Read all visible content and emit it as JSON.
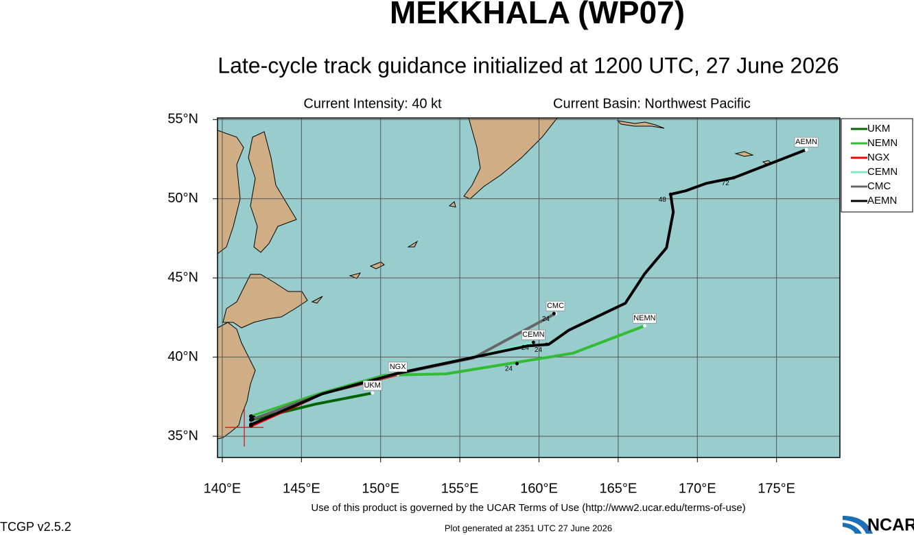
{
  "chart_data": {
    "type": "track-map",
    "title": "MEKKHALA (WP07)",
    "subtitle": "Late-cycle track guidance initialized at 1200 UTC, 27 June 2026",
    "annotations": [
      "Current Intensity: 40 kt",
      "Current Basin: Northwest Pacific"
    ],
    "xlim": [
      139.7,
      179
    ],
    "ylim": [
      33.66,
      55.1
    ],
    "xticks": [
      {
        "value": 140,
        "label": "140°E"
      },
      {
        "value": 145,
        "label": "145°E"
      },
      {
        "value": 150,
        "label": "150°E"
      },
      {
        "value": 155,
        "label": "155°E"
      },
      {
        "value": 160,
        "label": "160°E"
      },
      {
        "value": 165,
        "label": "165°E"
      },
      {
        "value": 170,
        "label": "170°E"
      },
      {
        "value": 175,
        "label": "175°E"
      }
    ],
    "yticks": [
      {
        "value": 35,
        "label": "35°N"
      },
      {
        "value": 40,
        "label": "40°N"
      },
      {
        "value": 45,
        "label": "45°N"
      },
      {
        "value": 50,
        "label": "50°N"
      },
      {
        "value": 55,
        "label": "55°N"
      }
    ],
    "grid": true,
    "ocean_color": "#99cccc",
    "current_position": {
      "lon": 141.39,
      "lat": 35.56
    },
    "series": [
      {
        "name": "UKM",
        "color": "#006400",
        "lon": [
          141.82,
          145.89,
          149.48
        ],
        "lat": [
          36.04,
          37.03,
          37.73
        ],
        "markers": []
      },
      {
        "name": "NEMN",
        "color": "#33bb33",
        "lon": [
          141.82,
          146.1,
          150.22,
          154.11,
          162.12,
          166.67
        ],
        "lat": [
          36.26,
          37.68,
          38.85,
          38.94,
          40.24,
          41.97
        ],
        "markers": [
          {
            "hour": 24,
            "lon": 158.61,
            "lat": 39.59
          }
        ]
      },
      {
        "name": "NGX",
        "color": "#ff0000",
        "lon": [
          141.82,
          146.32,
          151.08
        ],
        "lat": [
          35.65,
          37.68,
          38.9
        ],
        "markers": []
      },
      {
        "name": "CEMN",
        "color": "#7fe8c8",
        "lon": [
          141.99,
          147.19,
          150.22,
          155.84,
          159.65
        ],
        "lat": [
          36.17,
          37.9,
          38.77,
          39.98,
          40.93
        ],
        "markers": [
          {
            "hour": 24,
            "lon": 159.65,
            "lat": 40.93
          }
        ]
      },
      {
        "name": "CMC",
        "color": "#666666",
        "lon": [
          141.9,
          146.32,
          151.08,
          155.84,
          161.04
        ],
        "lat": [
          36.08,
          37.68,
          38.94,
          39.94,
          42.75
        ],
        "markers": [
          {
            "hour": 24,
            "lon": 160.95,
            "lat": 42.75
          }
        ]
      },
      {
        "name": "AEMN",
        "color": "#000000",
        "lon": [
          141.82,
          146.32,
          151.08,
          155.84,
          159.31,
          160.61,
          161.9,
          165.45,
          166.67,
          168.05,
          168.48,
          168.31,
          169.26,
          170.56,
          172.29,
          176.88
        ],
        "lat": [
          35.74,
          37.68,
          38.98,
          39.98,
          40.71,
          40.8,
          41.71,
          43.4,
          45.26,
          46.9,
          49.16,
          50.28,
          50.5,
          50.97,
          51.32,
          53.1
        ],
        "markers": [
          {
            "hour": 24,
            "lon": 160.48,
            "lat": 40.8
          },
          {
            "hour": 48,
            "lon": 168.31,
            "lat": 50.28
          },
          {
            "hour": 72,
            "lon": 172.29,
            "lat": 51.32
          }
        ]
      }
    ]
  },
  "footer": {
    "terms": "Use of this product is governed by the UCAR Terms of Use (http://www2.ucar.edu/terms-of-use)",
    "version": "TCGP v2.5.2",
    "generated": "Plot generated at 2351 UTC  27 June 2026",
    "logo": "NCAR"
  }
}
